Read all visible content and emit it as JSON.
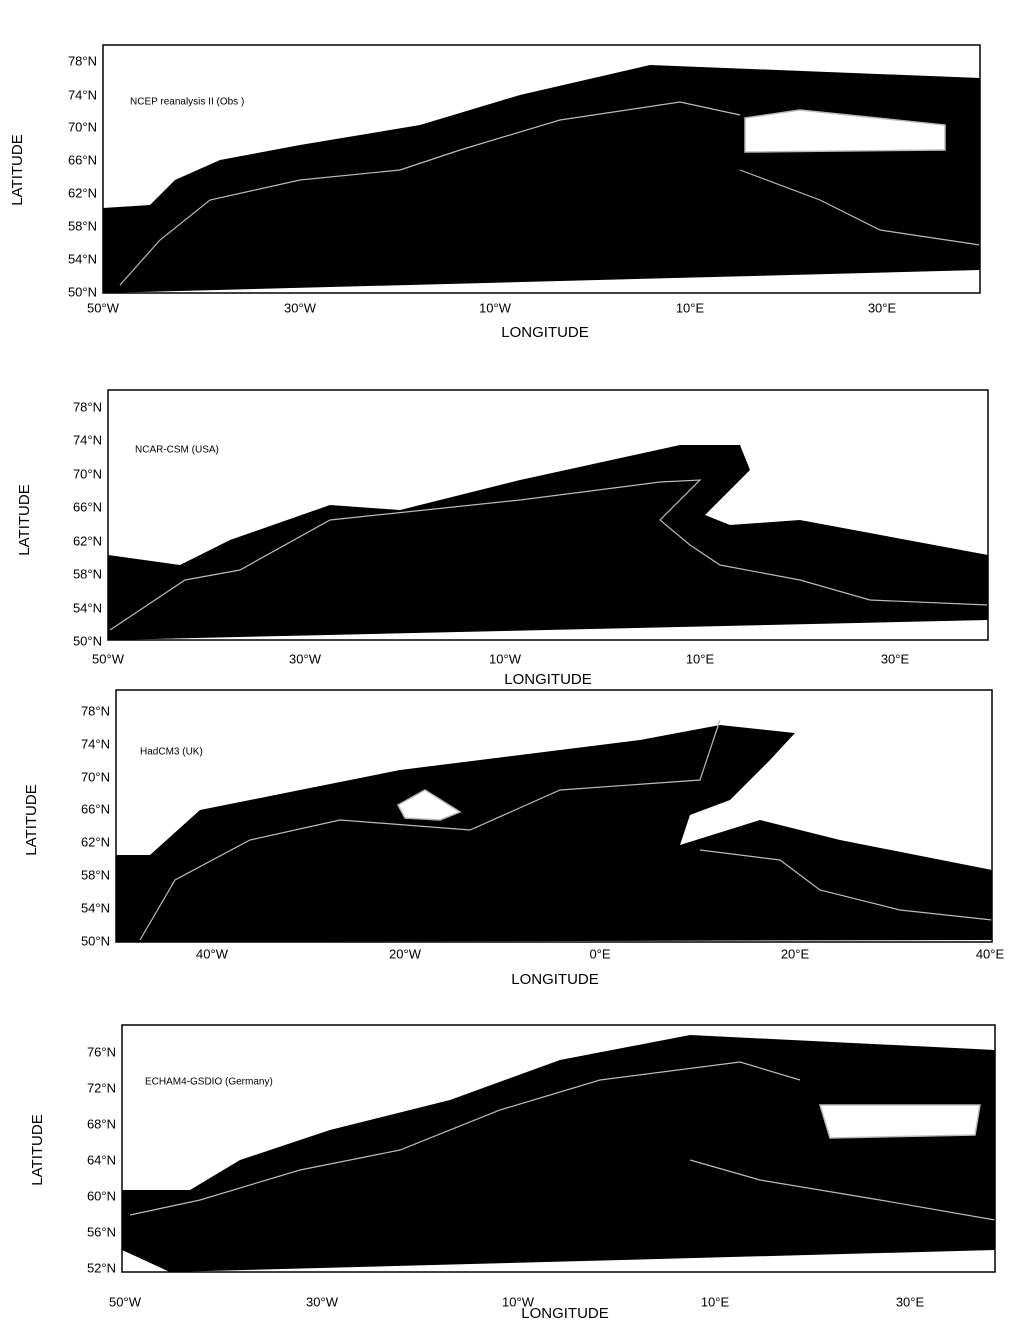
{
  "panels": [
    {
      "label": "NCEP reanalysis II (Obs )",
      "y_axis_title": "LATITUDE",
      "x_axis_title": "LONGITUDE",
      "lat_ticks": [
        "78°N",
        "74°N",
        "70°N",
        "66°N",
        "62°N",
        "58°N",
        "54°N",
        "50°N"
      ],
      "lon_ticks": [
        "50°W",
        "30°W",
        "10°W",
        "10°E",
        "30°E"
      ]
    },
    {
      "label": "NCAR-CSM (USA)",
      "y_axis_title": "LATITUDE",
      "x_axis_title": "LONGITUDE",
      "lat_ticks": [
        "78°N",
        "74°N",
        "70°N",
        "66°N",
        "62°N",
        "58°N",
        "54°N",
        "50°N"
      ],
      "lon_ticks": [
        "50°W",
        "30°W",
        "10°W",
        "10°E",
        "30°E"
      ]
    },
    {
      "label": "HadCM3 (UK)",
      "y_axis_title": "LATITUDE",
      "x_axis_title": "LONGITUDE",
      "lat_ticks": [
        "78°N",
        "74°N",
        "70°N",
        "66°N",
        "62°N",
        "58°N",
        "54°N",
        "50°N"
      ],
      "lon_ticks": [
        "40°W",
        "20°W",
        "0°E",
        "20°E",
        "40°E"
      ]
    },
    {
      "label": "ECHAM4-GSDIO (Germany)",
      "y_axis_title": "LATITUDE",
      "x_axis_title": "LONGITUDE",
      "lat_ticks": [
        "76°N",
        "72°N",
        "68°N",
        "64°N",
        "60°N",
        "56°N",
        "52°N"
      ],
      "lon_ticks": [
        "50°W",
        "30°W",
        "10°W",
        "10°E",
        "30°E"
      ]
    }
  ]
}
